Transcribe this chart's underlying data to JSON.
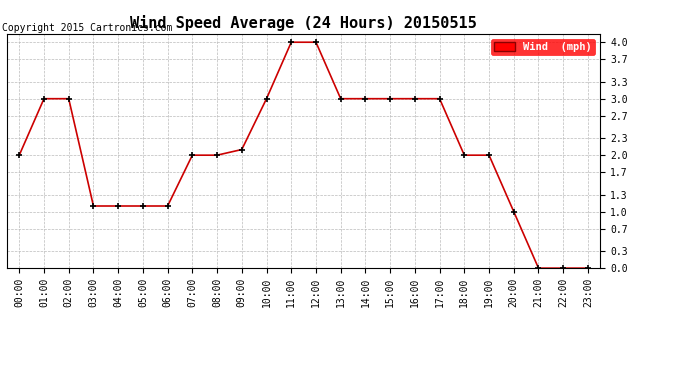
{
  "title": "Wind Speed Average (24 Hours) 20150515",
  "copyright": "Copyright 2015 Cartronics.com",
  "legend_label": "Wind  (mph)",
  "hours": [
    "00:00",
    "01:00",
    "02:00",
    "03:00",
    "04:00",
    "05:00",
    "06:00",
    "07:00",
    "08:00",
    "09:00",
    "10:00",
    "11:00",
    "12:00",
    "13:00",
    "14:00",
    "15:00",
    "16:00",
    "17:00",
    "18:00",
    "19:00",
    "20:00",
    "21:00",
    "22:00",
    "23:00"
  ],
  "wind_values": [
    2.0,
    3.0,
    3.0,
    1.1,
    1.1,
    1.1,
    1.1,
    2.0,
    2.0,
    2.1,
    3.0,
    4.0,
    4.0,
    3.0,
    3.0,
    3.0,
    3.0,
    3.0,
    2.0,
    2.0,
    1.0,
    0.0,
    0.0,
    0.0
  ],
  "line_color": "#cc0000",
  "marker_color": "#000000",
  "background_color": "#ffffff",
  "grid_color": "#bbbbbb",
  "ylim": [
    0.0,
    4.15
  ],
  "yticks": [
    0.0,
    0.3,
    0.7,
    1.0,
    1.3,
    1.7,
    2.0,
    2.3,
    2.7,
    3.0,
    3.3,
    3.7,
    4.0
  ],
  "title_fontsize": 11,
  "copyright_fontsize": 7,
  "legend_fontsize": 7.5,
  "tick_fontsize": 7
}
